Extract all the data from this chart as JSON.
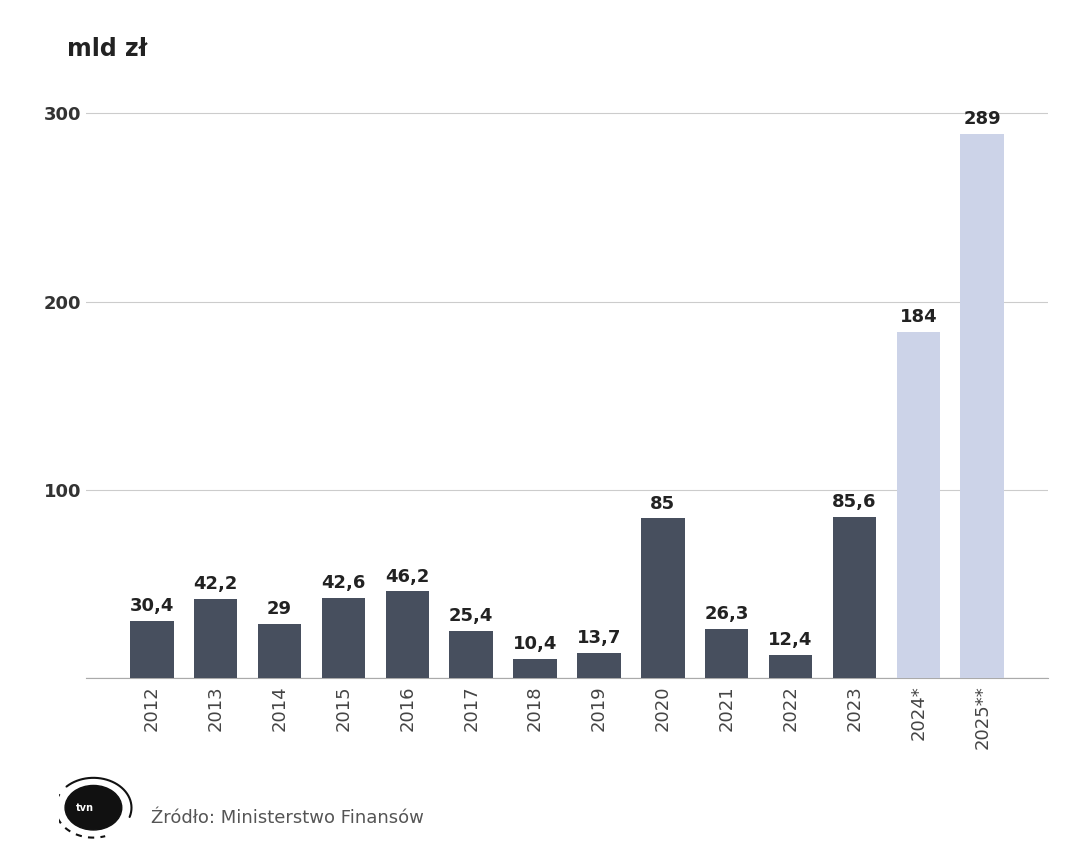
{
  "categories": [
    "2012",
    "2013",
    "2014",
    "2015",
    "2016",
    "2017",
    "2018",
    "2019",
    "2020",
    "2021",
    "2022",
    "2023",
    "2024*",
    "2025**"
  ],
  "values": [
    30.4,
    42.2,
    29.0,
    42.6,
    46.2,
    25.4,
    10.4,
    13.7,
    85.0,
    26.3,
    12.4,
    85.6,
    184.0,
    289.0
  ],
  "labels": [
    "30,4",
    "42,2",
    "29",
    "42,6",
    "46,2",
    "25,4",
    "10,4",
    "13,7",
    "85",
    "26,3",
    "12,4",
    "85,6",
    "184",
    "289"
  ],
  "bar_color_dark": "#474f5e",
  "bar_color_light": "#ccd3e8",
  "light_bars": [
    12,
    13
  ],
  "ylabel": "mld zł",
  "ylim": [
    0,
    315
  ],
  "yticks": [
    0,
    100,
    200,
    300
  ],
  "background_color": "#ffffff",
  "plot_background": "#ffffff",
  "grid_color": "#cccccc",
  "source_text": "Źródło: Ministerstwo Finansów",
  "label_fontsize": 13,
  "tick_fontsize": 13,
  "ylabel_fontsize": 17
}
